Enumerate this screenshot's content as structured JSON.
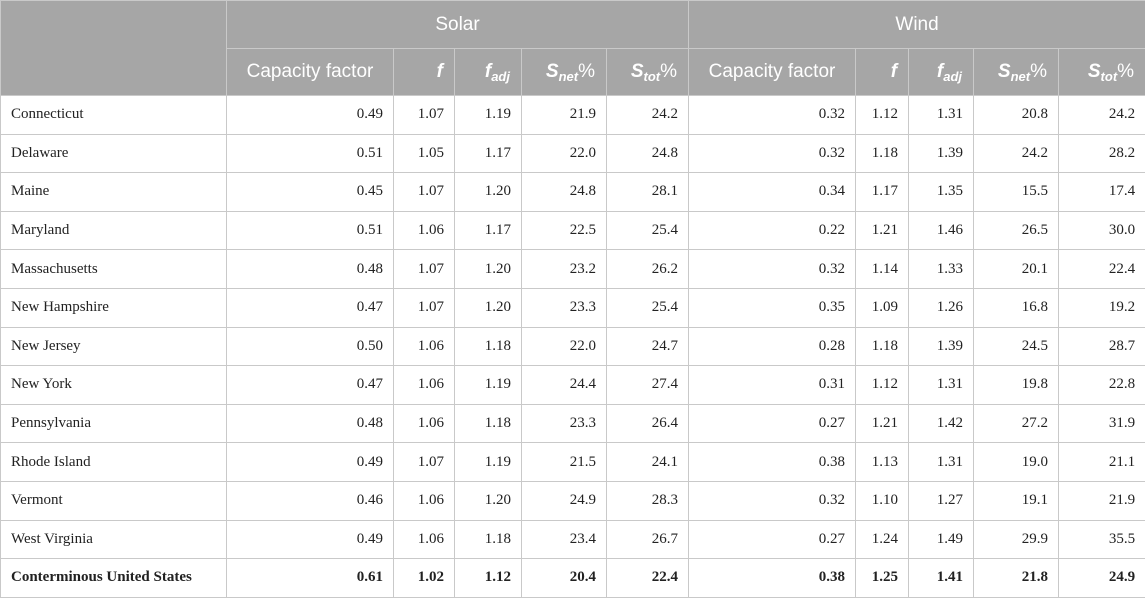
{
  "header": {
    "groups": [
      "Solar",
      "Wind"
    ],
    "columns": [
      {
        "base": "Capacity factor",
        "sub": "",
        "suffix": ""
      },
      {
        "base": "f",
        "sub": "",
        "suffix": ""
      },
      {
        "base": "f",
        "sub": "adj",
        "suffix": ""
      },
      {
        "base": "S",
        "sub": "net",
        "suffix": "%"
      },
      {
        "base": "S",
        "sub": "tot",
        "suffix": "%"
      }
    ]
  },
  "rows": [
    {
      "state": "Connecticut",
      "solar": [
        "0.49",
        "1.07",
        "1.19",
        "21.9",
        "24.2"
      ],
      "wind": [
        "0.32",
        "1.12",
        "1.31",
        "20.8",
        "24.2"
      ]
    },
    {
      "state": "Delaware",
      "solar": [
        "0.51",
        "1.05",
        "1.17",
        "22.0",
        "24.8"
      ],
      "wind": [
        "0.32",
        "1.18",
        "1.39",
        "24.2",
        "28.2"
      ]
    },
    {
      "state": "Maine",
      "solar": [
        "0.45",
        "1.07",
        "1.20",
        "24.8",
        "28.1"
      ],
      "wind": [
        "0.34",
        "1.17",
        "1.35",
        "15.5",
        "17.4"
      ]
    },
    {
      "state": "Maryland",
      "solar": [
        "0.51",
        "1.06",
        "1.17",
        "22.5",
        "25.4"
      ],
      "wind": [
        "0.22",
        "1.21",
        "1.46",
        "26.5",
        "30.0"
      ]
    },
    {
      "state": "Massachusetts",
      "solar": [
        "0.48",
        "1.07",
        "1.20",
        "23.2",
        "26.2"
      ],
      "wind": [
        "0.32",
        "1.14",
        "1.33",
        "20.1",
        "22.4"
      ]
    },
    {
      "state": "New Hampshire",
      "solar": [
        "0.47",
        "1.07",
        "1.20",
        "23.3",
        "25.4"
      ],
      "wind": [
        "0.35",
        "1.09",
        "1.26",
        "16.8",
        "19.2"
      ]
    },
    {
      "state": "New Jersey",
      "solar": [
        "0.50",
        "1.06",
        "1.18",
        "22.0",
        "24.7"
      ],
      "wind": [
        "0.28",
        "1.18",
        "1.39",
        "24.5",
        "28.7"
      ]
    },
    {
      "state": "New York",
      "solar": [
        "0.47",
        "1.06",
        "1.19",
        "24.4",
        "27.4"
      ],
      "wind": [
        "0.31",
        "1.12",
        "1.31",
        "19.8",
        "22.8"
      ]
    },
    {
      "state": "Pennsylvania",
      "solar": [
        "0.48",
        "1.06",
        "1.18",
        "23.3",
        "26.4"
      ],
      "wind": [
        "0.27",
        "1.21",
        "1.42",
        "27.2",
        "31.9"
      ]
    },
    {
      "state": "Rhode Island",
      "solar": [
        "0.49",
        "1.07",
        "1.19",
        "21.5",
        "24.1"
      ],
      "wind": [
        "0.38",
        "1.13",
        "1.31",
        "19.0",
        "21.1"
      ]
    },
    {
      "state": "Vermont",
      "solar": [
        "0.46",
        "1.06",
        "1.20",
        "24.9",
        "28.3"
      ],
      "wind": [
        "0.32",
        "1.10",
        "1.27",
        "19.1",
        "21.9"
      ]
    },
    {
      "state": "West Virginia",
      "solar": [
        "0.49",
        "1.06",
        "1.18",
        "23.4",
        "26.7"
      ],
      "wind": [
        "0.27",
        "1.24",
        "1.49",
        "29.9",
        "35.5"
      ]
    }
  ],
  "total": {
    "state": "Conterminous United States",
    "solar": [
      "0.61",
      "1.02",
      "1.12",
      "20.4",
      "22.4"
    ],
    "wind": [
      "0.38",
      "1.25",
      "1.41",
      "21.8",
      "24.9"
    ]
  }
}
